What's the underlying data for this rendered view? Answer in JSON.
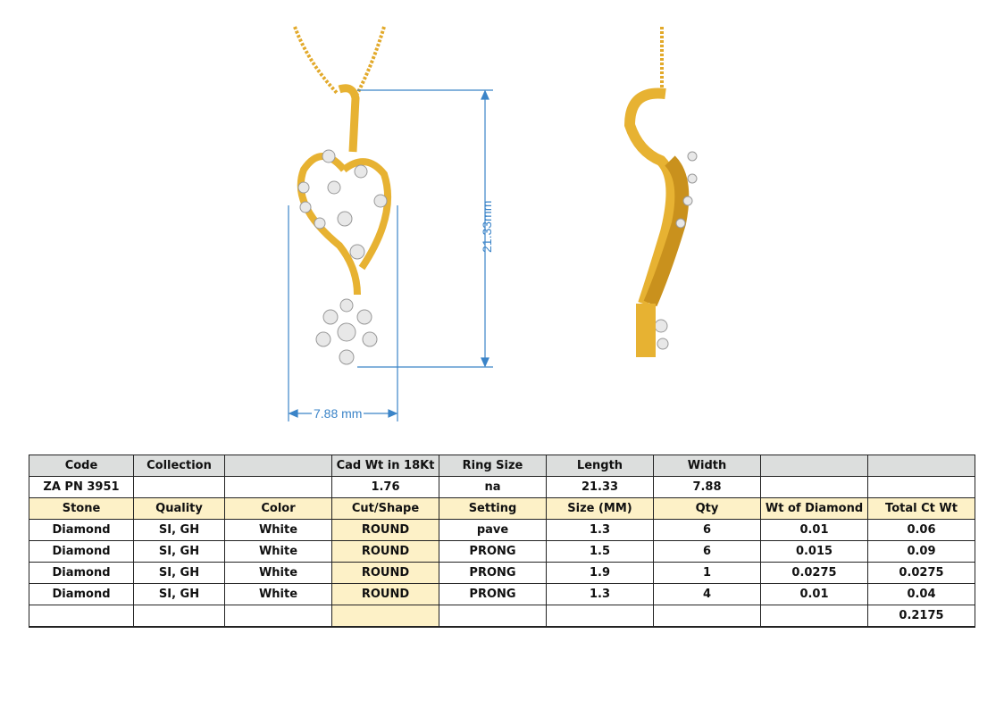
{
  "dimensions": {
    "length_label": "21.33mm",
    "width_label": "7.88 mm"
  },
  "colors": {
    "gold": "#e7b232",
    "dimension_line": "#3b84c8",
    "header_gray": "#dcdedd",
    "header_yellow": "#fdf1c7"
  },
  "spec": {
    "header": [
      "Code",
      "Collection",
      "",
      "Cad Wt in 18Kt",
      "Ring Size",
      "Length",
      "Width",
      "",
      ""
    ],
    "values": [
      "ZA PN 3951",
      "",
      "",
      "1.76",
      "na",
      "21.33",
      "7.88",
      "",
      ""
    ],
    "stone_header": [
      "Stone",
      "Quality",
      "Color",
      "Cut/Shape",
      "Setting",
      "Size (MM)",
      "Qty",
      "Wt of Diamond",
      "Total Ct Wt"
    ],
    "stones": [
      [
        "Diamond",
        "SI, GH",
        "White",
        "ROUND",
        "pave",
        "1.3",
        "6",
        "0.01",
        "0.06"
      ],
      [
        "Diamond",
        "SI, GH",
        "White",
        "ROUND",
        "PRONG",
        "1.5",
        "6",
        "0.015",
        "0.09"
      ],
      [
        "Diamond",
        "SI, GH",
        "White",
        "ROUND",
        "PRONG",
        "1.9",
        "1",
        "0.0275",
        "0.0275"
      ],
      [
        "Diamond",
        "SI, GH",
        "White",
        "ROUND",
        "PRONG",
        "1.3",
        "4",
        "0.01",
        "0.04"
      ]
    ],
    "total": [
      "",
      "",
      "",
      "",
      "",
      "",
      "",
      "",
      "0.2175"
    ]
  }
}
